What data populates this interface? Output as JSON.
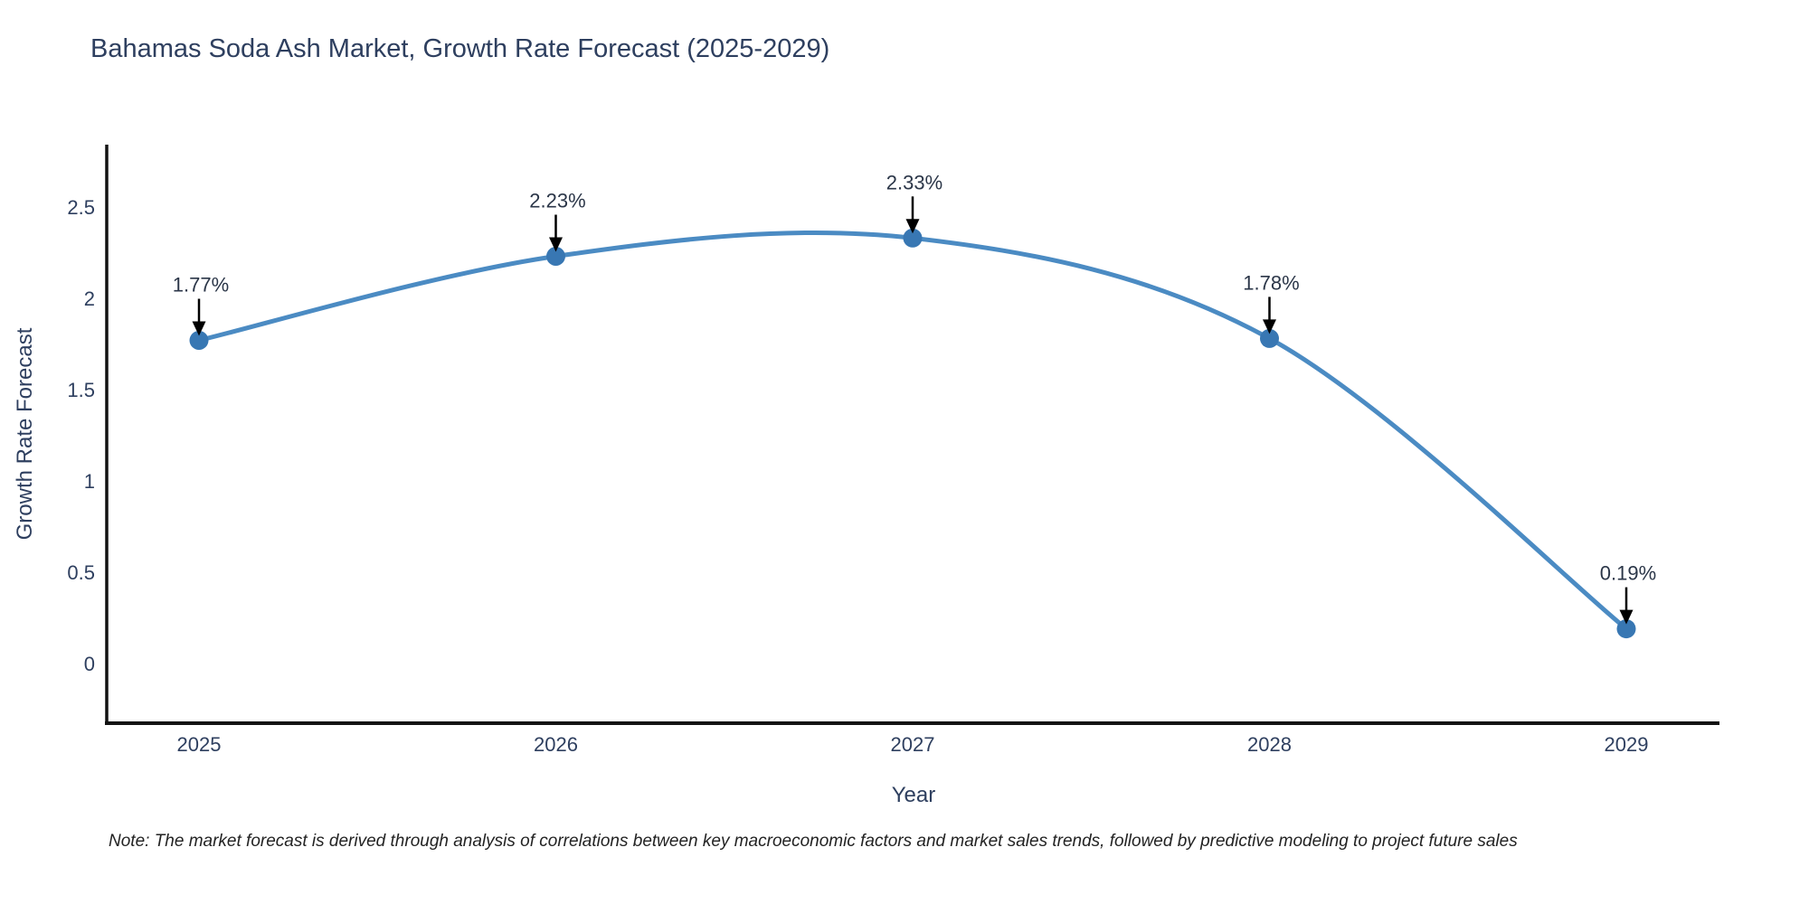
{
  "title": "Bahamas Soda Ash Market, Growth Rate Forecast (2025-2029)",
  "note": "Note: The market forecast is derived through analysis of correlations between key macroeconomic factors and market sales trends, followed by predictive modeling to project future sales",
  "chart_data": {
    "type": "line",
    "title": "Bahamas Soda Ash Market, Growth Rate Forecast (2025-2029)",
    "x": [
      "2025",
      "2026",
      "2027",
      "2028",
      "2029"
    ],
    "series": [
      {
        "name": "Growth Rate Forecast",
        "values": [
          1.77,
          2.23,
          2.33,
          1.78,
          0.19
        ]
      }
    ],
    "point_labels": [
      "1.77%",
      "2.23%",
      "2.33%",
      "1.78%",
      "0.19%"
    ],
    "xlabel": "Year",
    "ylabel": "Growth Rate Forecast",
    "yticks": [
      0,
      0.5,
      1,
      1.5,
      2,
      2.5
    ],
    "ylim": [
      -0.33,
      2.84
    ],
    "line_shape": "spline",
    "grid": false,
    "legend": "none",
    "colors": {
      "line": "#4b8bc3",
      "marker": "#3877b3",
      "axis": "#131313",
      "tick_text": "#2e3f5f",
      "annotation_text": "#2b3648",
      "annotation_arrow": "#000000"
    }
  }
}
